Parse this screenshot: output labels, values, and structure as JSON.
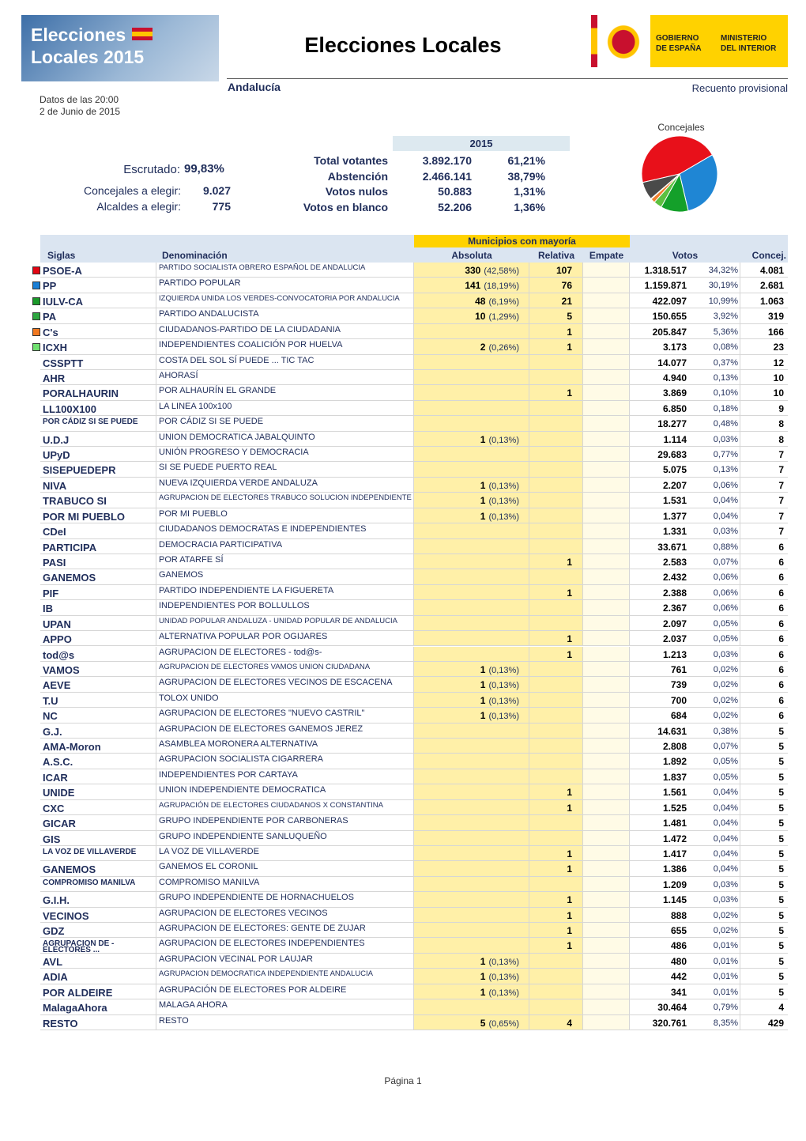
{
  "header": {
    "logo_line1": "Elecciones",
    "logo_line2": "Locales 2015",
    "title": "Elecciones Locales",
    "gov_line1": "GOBIERNO",
    "gov_line2": "DE ESPAÑA",
    "min_line1": "MINISTERIO",
    "min_line2": "DEL INTERIOR"
  },
  "region": "Andalucía",
  "status": "Recuento provisional",
  "time": "Datos de las 20:00",
  "date": "2 de Junio de 2015",
  "summary": {
    "escrutado_label": "Escrutado:",
    "escrutado": "99,83%",
    "concejales_label": "Concejales a elegir:",
    "concejales": "9.027",
    "alcaldes_label": "Alcaldes a elegir:",
    "alcaldes": "775"
  },
  "votes": {
    "year": "2015",
    "rows": [
      [
        "Total votantes",
        "3.892.170",
        "61,21%"
      ],
      [
        "Abstención",
        "2.466.141",
        "38,79%"
      ],
      [
        "Votos nulos",
        "50.883",
        "1,31%"
      ],
      [
        "Votos en blanco",
        "52.206",
        "1,36%"
      ]
    ]
  },
  "pie": {
    "type": "pie",
    "title": "Concejales",
    "values": [
      4081,
      2681,
      1063,
      319,
      166,
      23,
      694
    ],
    "colors": [
      "#e8101a",
      "#1f86d4",
      "#14a02a",
      "#5cc040",
      "#f08030",
      "#90e070",
      "#4a4a4a"
    ]
  },
  "table": {
    "group_header": "Municipios con mayoría",
    "headers": [
      "Siglas",
      "Denominación",
      "Absoluta",
      "Relativa",
      "Empate",
      "Votos",
      "Concej."
    ],
    "row_markers": [
      "#e30613",
      "#1a7fd6",
      "#1a9a2a",
      "#2ea640",
      "#f07820",
      "#70e070"
    ],
    "rows": [
      [
        "PSOE-A",
        "PARTIDO SOCIALISTA OBRERO ESPAÑOL DE ANDALUCIA",
        "330",
        "(42,58%)",
        "107",
        "1.318.517",
        "34,32%",
        "4.081"
      ],
      [
        "PP",
        "PARTIDO POPULAR",
        "141",
        "(18,19%)",
        "76",
        "1.159.871",
        "30,19%",
        "2.681"
      ],
      [
        "IULV-CA",
        "IZQUIERDA UNIDA LOS VERDES-CONVOCATORIA POR ANDALUCIA",
        "48",
        "(6,19%)",
        "21",
        "422.097",
        "10,99%",
        "1.063"
      ],
      [
        "PA",
        "PARTIDO ANDALUCISTA",
        "10",
        "(1,29%)",
        "5",
        "150.655",
        "3,92%",
        "319"
      ],
      [
        "C's",
        "CIUDADANOS-PARTIDO DE LA CIUDADANIA",
        null,
        null,
        "1",
        "205.847",
        "5,36%",
        "166"
      ],
      [
        "ICXH",
        "INDEPENDIENTES COALICIÓN POR HUELVA",
        "2",
        "(0,26%)",
        "1",
        "3.173",
        "0,08%",
        "23"
      ],
      [
        "CSSPTT",
        "COSTA DEL SOL SÍ PUEDE ... TIC TAC",
        null,
        null,
        null,
        "14.077",
        "0,37%",
        "12"
      ],
      [
        "AHR",
        "AHORASÍ",
        null,
        null,
        null,
        "4.940",
        "0,13%",
        "10"
      ],
      [
        "PORALHAURIN",
        "POR ALHAURÍN EL GRANDE",
        null,
        null,
        "1",
        "3.869",
        "0,10%",
        "10"
      ],
      [
        "LL100X100",
        "LA LINEA 100x100",
        null,
        null,
        null,
        "6.850",
        "0,18%",
        "9"
      ],
      [
        "POR CÁDIZ SI SE PUEDE",
        "POR CÁDIZ SI SE PUEDE",
        null,
        null,
        null,
        "18.277",
        "0,48%",
        "8"
      ],
      [
        "U.D.J",
        "UNION DEMOCRATICA JABALQUINTO",
        "1",
        "(0,13%)",
        null,
        "1.114",
        "0,03%",
        "8"
      ],
      [
        "UPyD",
        "UNIÓN PROGRESO Y DEMOCRACIA",
        null,
        null,
        null,
        "29.683",
        "0,77%",
        "7"
      ],
      [
        "SISEPUEDEPR",
        "SI SE PUEDE PUERTO REAL",
        null,
        null,
        null,
        "5.075",
        "0,13%",
        "7"
      ],
      [
        "NIVA",
        "NUEVA IZQUIERDA VERDE ANDALUZA",
        "1",
        "(0,13%)",
        null,
        "2.207",
        "0,06%",
        "7"
      ],
      [
        "TRABUCO SI",
        "AGRUPACION DE ELECTORES TRABUCO SOLUCION INDEPENDIENTE",
        "1",
        "(0,13%)",
        null,
        "1.531",
        "0,04%",
        "7"
      ],
      [
        "POR MI PUEBLO",
        "POR MI PUEBLO",
        "1",
        "(0,13%)",
        null,
        "1.377",
        "0,04%",
        "7"
      ],
      [
        "CDeI",
        "CIUDADANOS DEMOCRATAS E INDEPENDIENTES",
        null,
        null,
        null,
        "1.331",
        "0,03%",
        "7"
      ],
      [
        "PARTICIPA",
        "DEMOCRACIA PARTICIPATIVA",
        null,
        null,
        null,
        "33.671",
        "0,88%",
        "6"
      ],
      [
        "PASI",
        "POR ATARFE SÍ",
        null,
        null,
        "1",
        "2.583",
        "0,07%",
        "6"
      ],
      [
        "GANEMOS",
        "GANEMOS",
        null,
        null,
        null,
        "2.432",
        "0,06%",
        "6"
      ],
      [
        "PIF",
        "PARTIDO INDEPENDIENTE LA FIGUERETA",
        null,
        null,
        "1",
        "2.388",
        "0,06%",
        "6"
      ],
      [
        "IB",
        "INDEPENDIENTES POR BOLLULLOS",
        null,
        null,
        null,
        "2.367",
        "0,06%",
        "6"
      ],
      [
        "UPAN",
        "UNIDAD POPULAR ANDALUZA - UNIDAD POPULAR DE ANDALUCIA",
        null,
        null,
        null,
        "2.097",
        "0,05%",
        "6"
      ],
      [
        "APPO",
        "ALTERNATIVA POPULAR POR OGIJARES",
        null,
        null,
        "1",
        "2.037",
        "0,05%",
        "6"
      ],
      [
        "tod@s",
        "AGRUPACION DE ELECTORES - tod@s-",
        null,
        null,
        "1",
        "1.213",
        "0,03%",
        "6"
      ],
      [
        "VAMOS",
        "AGRUPACION DE ELECTORES VAMOS UNION CIUDADANA",
        "1",
        "(0,13%)",
        null,
        "761",
        "0,02%",
        "6"
      ],
      [
        "AEVE",
        "AGRUPACION DE ELECTORES VECINOS DE ESCACENA",
        "1",
        "(0,13%)",
        null,
        "739",
        "0,02%",
        "6"
      ],
      [
        "T.U",
        "TOLOX UNIDO",
        "1",
        "(0,13%)",
        null,
        "700",
        "0,02%",
        "6"
      ],
      [
        "NC",
        "AGRUPACION DE ELECTORES \"NUEVO CASTRIL\"",
        "1",
        "(0,13%)",
        null,
        "684",
        "0,02%",
        "6"
      ],
      [
        "G.J.",
        "AGRUPACION DE ELECTORES GANEMOS JEREZ",
        null,
        null,
        null,
        "14.631",
        "0,38%",
        "5"
      ],
      [
        "AMA-Moron",
        "ASAMBLEA MORONERA ALTERNATIVA",
        null,
        null,
        null,
        "2.808",
        "0,07%",
        "5"
      ],
      [
        "A.S.C.",
        "AGRUPACION SOCIALISTA CIGARRERA",
        null,
        null,
        null,
        "1.892",
        "0,05%",
        "5"
      ],
      [
        "ICAR",
        "INDEPENDIENTES POR CARTAYA",
        null,
        null,
        null,
        "1.837",
        "0,05%",
        "5"
      ],
      [
        "UNIDE",
        "UNION INDEPENDIENTE DEMOCRATICA",
        null,
        null,
        "1",
        "1.561",
        "0,04%",
        "5"
      ],
      [
        "CXC",
        "AGRUPACIÓN DE ELECTORES CIUDADANOS X CONSTANTINA",
        null,
        null,
        "1",
        "1.525",
        "0,04%",
        "5"
      ],
      [
        "GICAR",
        "GRUPO INDEPENDIENTE POR CARBONERAS",
        null,
        null,
        null,
        "1.481",
        "0,04%",
        "5"
      ],
      [
        "GIS",
        "GRUPO INDEPENDIENTE SANLUQUEÑO",
        null,
        null,
        null,
        "1.472",
        "0,04%",
        "5"
      ],
      [
        "LA VOZ DE VILLAVERDE",
        "LA VOZ DE VILLAVERDE",
        null,
        null,
        "1",
        "1.417",
        "0,04%",
        "5"
      ],
      [
        "GANEMOS",
        "GANEMOS EL CORONIL",
        null,
        null,
        "1",
        "1.386",
        "0,04%",
        "5"
      ],
      [
        "COMPROMISO MANILVA",
        "COMPROMISO MANILVA",
        null,
        null,
        null,
        "1.209",
        "0,03%",
        "5"
      ],
      [
        "G.I.H.",
        "GRUPO INDEPENDIENTE DE HORNACHUELOS",
        null,
        null,
        "1",
        "1.145",
        "0,03%",
        "5"
      ],
      [
        "VECINOS",
        "AGRUPACION DE ELECTORES VECINOS",
        null,
        null,
        "1",
        "888",
        "0,02%",
        "5"
      ],
      [
        "GDZ",
        "AGRUPACION DE ELECTORES: GENTE DE ZUJAR",
        null,
        null,
        "1",
        "655",
        "0,02%",
        "5"
      ],
      [
        "AGRUPACION DE - ELECTORES ...",
        "AGRUPACION DE ELECTORES INDEPENDIENTES",
        null,
        null,
        "1",
        "486",
        "0,01%",
        "5"
      ],
      [
        "AVL",
        "AGRUPACION VECINAL POR LAUJAR",
        "1",
        "(0,13%)",
        null,
        "480",
        "0,01%",
        "5"
      ],
      [
        "ADIA",
        "AGRUPACION DEMOCRATICA INDEPENDIENTE ANDALUCIA",
        "1",
        "(0,13%)",
        null,
        "442",
        "0,01%",
        "5"
      ],
      [
        "POR ALDEIRE",
        "AGRUPACIÓN DE ELECTORES POR ALDEIRE",
        "1",
        "(0,13%)",
        null,
        "341",
        "0,01%",
        "5"
      ],
      [
        "MalagaAhora",
        "MALAGA AHORA",
        null,
        null,
        null,
        "30.464",
        "0,79%",
        "4"
      ],
      [
        "RESTO",
        "RESTO",
        "5",
        "(0,65%)",
        "4",
        "320.761",
        "8,35%",
        "429"
      ]
    ]
  },
  "footer": "Página 1"
}
